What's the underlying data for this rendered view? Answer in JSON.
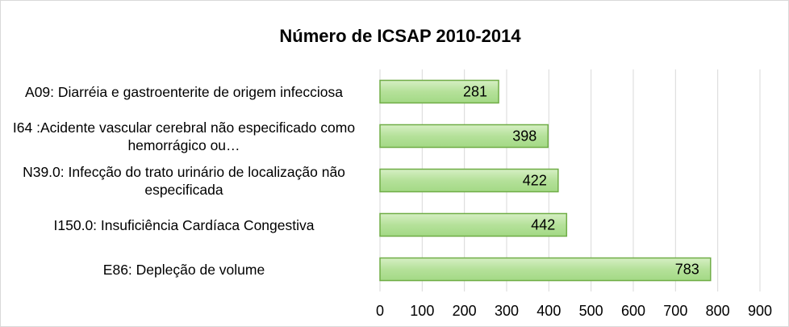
{
  "chart_data": {
    "type": "bar",
    "orientation": "horizontal",
    "title": "Número de ICSAP 2010-2014",
    "categories": [
      "A09: Diarréia e gastroenterite de origem infecciosa",
      "I64 :Acidente vascular cerebral não especificado como hemorrágico ou…",
      "N39.0: Infecção do trato urinário de localização não especificada",
      "I150.0: Insuficiência Cardíaca Congestiva",
      "E86: Depleção de volume"
    ],
    "values": [
      281,
      398,
      422,
      442,
      783
    ],
    "color": "#92d050",
    "xlim": [
      0,
      900
    ],
    "xticks": [
      0,
      100,
      200,
      300,
      400,
      500,
      600,
      700,
      800,
      900
    ],
    "grid": true
  }
}
